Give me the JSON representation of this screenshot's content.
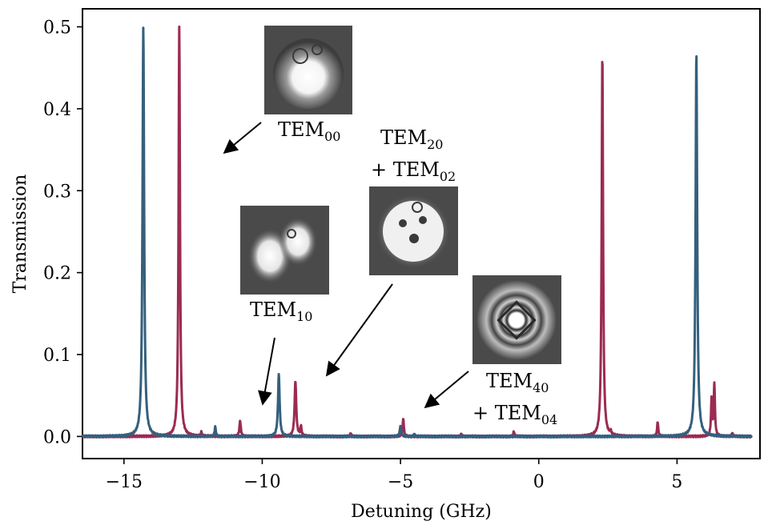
{
  "chart_data": {
    "type": "line",
    "xlabel": "Detuning (GHz)",
    "ylabel": "Transmission",
    "xlim": [
      -16.5,
      8.0
    ],
    "ylim": [
      -0.027,
      0.522
    ],
    "xticks": [
      -15,
      -10,
      -5,
      0,
      5
    ],
    "xtick_labels": [
      "−15",
      "−10",
      "−5",
      "0",
      "5"
    ],
    "yticks": [
      0.0,
      0.1,
      0.2,
      0.3,
      0.4,
      0.5
    ],
    "ytick_labels": [
      "0.0",
      "0.1",
      "0.2",
      "0.3",
      "0.4",
      "0.5"
    ],
    "grid": false,
    "series": [
      {
        "color": "#9b2b52",
        "baseline": 0.0,
        "peaks": [
          {
            "x": -13.0,
            "y": 0.5,
            "width": 0.06
          },
          {
            "x": -12.2,
            "y": 0.005,
            "width": 0.05
          },
          {
            "x": -10.8,
            "y": 0.019,
            "width": 0.06
          },
          {
            "x": -8.8,
            "y": 0.068,
            "width": 0.07
          },
          {
            "x": -8.6,
            "y": 0.012,
            "width": 0.05
          },
          {
            "x": -6.8,
            "y": 0.004,
            "width": 0.05
          },
          {
            "x": -4.9,
            "y": 0.022,
            "width": 0.05
          },
          {
            "x": -2.8,
            "y": 0.003,
            "width": 0.05
          },
          {
            "x": -0.9,
            "y": 0.006,
            "width": 0.05
          },
          {
            "x": 2.3,
            "y": 0.468,
            "width": 0.06
          },
          {
            "x": 2.6,
            "y": 0.004,
            "width": 0.05
          },
          {
            "x": 4.3,
            "y": 0.018,
            "width": 0.05
          },
          {
            "x": 6.25,
            "y": 0.045,
            "width": 0.05
          },
          {
            "x": 6.35,
            "y": 0.064,
            "width": 0.05
          },
          {
            "x": 7.0,
            "y": 0.004,
            "width": 0.05
          }
        ]
      },
      {
        "color": "#34607d",
        "baseline": 0.0,
        "peaks": [
          {
            "x": -14.3,
            "y": 0.5,
            "width": 0.07
          },
          {
            "x": -11.7,
            "y": 0.012,
            "width": 0.05
          },
          {
            "x": -9.4,
            "y": 0.076,
            "width": 0.07
          },
          {
            "x": -5.0,
            "y": 0.013,
            "width": 0.06
          },
          {
            "x": -4.5,
            "y": 0.003,
            "width": 0.05
          },
          {
            "x": 5.7,
            "y": 0.468,
            "width": 0.07
          }
        ]
      }
    ],
    "annotations": [
      {
        "main": "TEM",
        "sub": "00",
        "image": "mode-pattern-00"
      },
      {
        "main": "TEM",
        "sub": "10",
        "image": "mode-pattern-10"
      },
      {
        "line1_main": "TEM",
        "line1_sub": "20",
        "line2_main": "+ TEM",
        "line2_sub": "02",
        "image": "mode-pattern-20-02"
      },
      {
        "line1_main": "TEM",
        "line1_sub": "40",
        "line2_main": "+ TEM",
        "line2_sub": "04",
        "image": "mode-pattern-40-04"
      }
    ]
  }
}
